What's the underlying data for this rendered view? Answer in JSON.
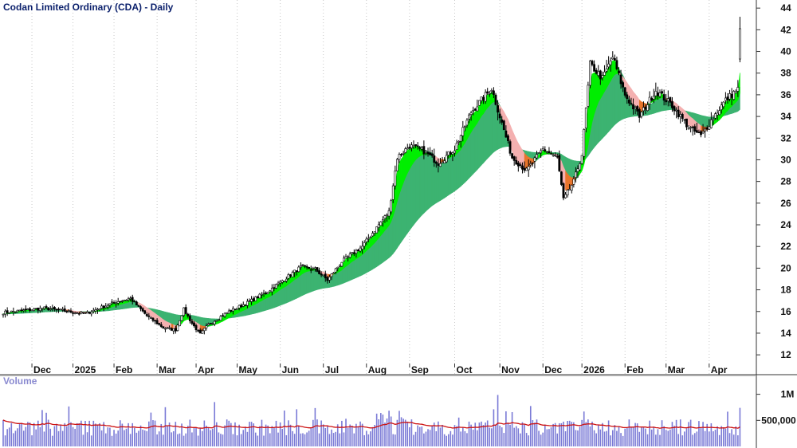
{
  "chart_data": {
    "type": "candlestick",
    "title": "Codan Limited Ordinary (CDA) - Daily",
    "y_ticks": [
      12,
      14,
      16,
      18,
      20,
      22,
      24,
      26,
      28,
      30,
      32,
      34,
      36,
      38,
      40,
      42,
      44
    ],
    "ylim": [
      11.2,
      44.6
    ],
    "x_labels": [
      "Dec",
      "2025",
      "Feb",
      "Mar",
      "Apr",
      "May",
      "Jun",
      "Jul",
      "Aug",
      "Sep",
      "Oct",
      "Nov",
      "Dec",
      "2026",
      "Feb",
      "Mar",
      "Apr"
    ],
    "x_label_index": [
      14,
      34,
      54,
      75,
      94,
      114,
      135,
      156,
      177,
      198,
      220,
      242,
      263,
      282,
      303,
      323,
      344
    ],
    "n_bars": 360,
    "close_points": [
      [
        0,
        15.9
      ],
      [
        20,
        16.3
      ],
      [
        40,
        15.8
      ],
      [
        55,
        16.9
      ],
      [
        62,
        17.2
      ],
      [
        70,
        15.6
      ],
      [
        78,
        14.5
      ],
      [
        84,
        14.3
      ],
      [
        88,
        16.2
      ],
      [
        92,
        14.9
      ],
      [
        96,
        13.9
      ],
      [
        100,
        14.8
      ],
      [
        110,
        16.0
      ],
      [
        120,
        16.9
      ],
      [
        130,
        18.0
      ],
      [
        145,
        20.1
      ],
      [
        152,
        19.9
      ],
      [
        158,
        18.9
      ],
      [
        165,
        20.6
      ],
      [
        175,
        22.0
      ],
      [
        183,
        24.0
      ],
      [
        188,
        25.2
      ],
      [
        192,
        30.2
      ],
      [
        198,
        31.3
      ],
      [
        205,
        30.8
      ],
      [
        212,
        29.7
      ],
      [
        220,
        31.0
      ],
      [
        228,
        34.4
      ],
      [
        238,
        36.6
      ],
      [
        242,
        34.0
      ],
      [
        248,
        30.2
      ],
      [
        255,
        29.0
      ],
      [
        263,
        31.0
      ],
      [
        270,
        30.2
      ],
      [
        273,
        26.3
      ],
      [
        278,
        28.0
      ],
      [
        282,
        30.5
      ],
      [
        286,
        38.8
      ],
      [
        292,
        37.5
      ],
      [
        297,
        39.5
      ],
      [
        303,
        36.0
      ],
      [
        310,
        34.0
      ],
      [
        318,
        36.4
      ],
      [
        326,
        35.0
      ],
      [
        334,
        33.0
      ],
      [
        340,
        32.2
      ],
      [
        347,
        34.2
      ],
      [
        352,
        35.5
      ],
      [
        356,
        36.2
      ],
      [
        358,
        36.5
      ],
      [
        359,
        39.5
      ]
    ],
    "series": [
      {
        "name": "",
        "color_up": "#00ee00",
        "color_down": "#e8742b"
      },
      {
        "name": "",
        "color": "#3cb371"
      }
    ],
    "volume": {
      "title": "Volume",
      "y_ticks": [
        "1M",
        "500,000"
      ],
      "y_tick_values": [
        1000000,
        500000
      ],
      "ylim": [
        0,
        1300000
      ],
      "average_color": "#cc1111",
      "bar_color": "#7a7ad6"
    }
  }
}
